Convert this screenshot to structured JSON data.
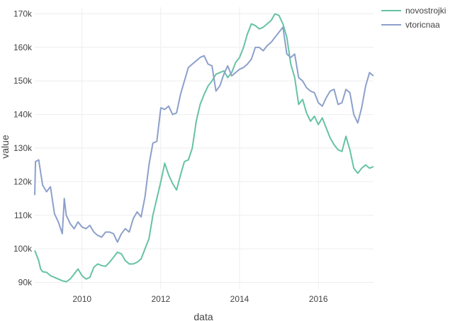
{
  "chart_data": {
    "type": "line",
    "xlabel": "data",
    "ylabel": "value",
    "xlim": [
      2008.8,
      2017.4
    ],
    "ylim": [
      88000,
      172000
    ],
    "x_ticks": [
      2010,
      2012,
      2014,
      2016
    ],
    "x_tick_labels": [
      "2010",
      "2012",
      "2014",
      "2016"
    ],
    "y_ticks": [
      90000,
      100000,
      110000,
      120000,
      130000,
      140000,
      150000,
      160000,
      170000
    ],
    "y_tick_labels": [
      "90k",
      "100k",
      "110k",
      "120k",
      "130k",
      "140k",
      "150k",
      "160k",
      "170k"
    ],
    "grid": true,
    "legend_position": "top-right",
    "series": [
      {
        "name": "novostrojki",
        "color": "#66c2a5",
        "points": [
          [
            2008.8,
            99500
          ],
          [
            2008.9,
            96500
          ],
          [
            2008.95,
            94000
          ],
          [
            2009.0,
            93200
          ],
          [
            2009.1,
            93000
          ],
          [
            2009.2,
            92000
          ],
          [
            2009.3,
            91500
          ],
          [
            2009.4,
            91000
          ],
          [
            2009.5,
            90500
          ],
          [
            2009.6,
            90200
          ],
          [
            2009.7,
            91000
          ],
          [
            2009.8,
            92500
          ],
          [
            2009.9,
            94000
          ],
          [
            2010.0,
            92000
          ],
          [
            2010.1,
            91000
          ],
          [
            2010.2,
            91500
          ],
          [
            2010.3,
            94500
          ],
          [
            2010.4,
            95500
          ],
          [
            2010.5,
            95000
          ],
          [
            2010.6,
            94800
          ],
          [
            2010.7,
            96000
          ],
          [
            2010.8,
            97500
          ],
          [
            2010.9,
            99000
          ],
          [
            2011.0,
            98500
          ],
          [
            2011.1,
            96500
          ],
          [
            2011.2,
            95500
          ],
          [
            2011.3,
            95500
          ],
          [
            2011.4,
            96000
          ],
          [
            2011.5,
            97000
          ],
          [
            2011.6,
            100000
          ],
          [
            2011.7,
            103000
          ],
          [
            2011.8,
            110000
          ],
          [
            2011.9,
            115000
          ],
          [
            2012.0,
            120000
          ],
          [
            2012.1,
            125500
          ],
          [
            2012.2,
            122000
          ],
          [
            2012.3,
            119500
          ],
          [
            2012.4,
            117500
          ],
          [
            2012.5,
            122000
          ],
          [
            2012.6,
            126000
          ],
          [
            2012.7,
            126500
          ],
          [
            2012.8,
            130000
          ],
          [
            2012.9,
            138000
          ],
          [
            2013.0,
            143000
          ],
          [
            2013.1,
            146000
          ],
          [
            2013.2,
            148500
          ],
          [
            2013.3,
            150000
          ],
          [
            2013.4,
            152000
          ],
          [
            2013.5,
            152500
          ],
          [
            2013.6,
            153000
          ],
          [
            2013.7,
            151000
          ],
          [
            2013.8,
            152500
          ],
          [
            2013.9,
            155500
          ],
          [
            2014.0,
            157000
          ],
          [
            2014.1,
            160000
          ],
          [
            2014.2,
            164000
          ],
          [
            2014.3,
            167000
          ],
          [
            2014.4,
            166500
          ],
          [
            2014.5,
            165500
          ],
          [
            2014.6,
            166000
          ],
          [
            2014.7,
            167000
          ],
          [
            2014.8,
            168000
          ],
          [
            2014.9,
            170000
          ],
          [
            2015.0,
            169500
          ],
          [
            2015.1,
            167000
          ],
          [
            2015.2,
            163000
          ],
          [
            2015.3,
            155000
          ],
          [
            2015.4,
            151000
          ],
          [
            2015.5,
            143000
          ],
          [
            2015.6,
            144500
          ],
          [
            2015.7,
            140500
          ],
          [
            2015.8,
            138000
          ],
          [
            2015.9,
            139500
          ],
          [
            2016.0,
            137000
          ],
          [
            2016.1,
            139000
          ],
          [
            2016.2,
            136000
          ],
          [
            2016.3,
            133000
          ],
          [
            2016.4,
            131000
          ],
          [
            2016.5,
            129500
          ],
          [
            2016.6,
            129000
          ],
          [
            2016.7,
            133500
          ],
          [
            2016.8,
            129500
          ],
          [
            2016.9,
            124000
          ],
          [
            2017.0,
            122500
          ],
          [
            2017.1,
            124000
          ],
          [
            2017.2,
            125000
          ],
          [
            2017.3,
            124000
          ],
          [
            2017.4,
            124500
          ]
        ]
      },
      {
        "name": "vtoricnaa",
        "color": "#8da0cb",
        "points": [
          [
            2008.8,
            116000
          ],
          [
            2008.82,
            126000
          ],
          [
            2008.9,
            126500
          ],
          [
            2009.0,
            119000
          ],
          [
            2009.1,
            117000
          ],
          [
            2009.2,
            118500
          ],
          [
            2009.3,
            110500
          ],
          [
            2009.4,
            108000
          ],
          [
            2009.5,
            104500
          ],
          [
            2009.55,
            115000
          ],
          [
            2009.6,
            110000
          ],
          [
            2009.7,
            107500
          ],
          [
            2009.8,
            106000
          ],
          [
            2009.9,
            108000
          ],
          [
            2010.0,
            106500
          ],
          [
            2010.1,
            106000
          ],
          [
            2010.2,
            107000
          ],
          [
            2010.3,
            105000
          ],
          [
            2010.4,
            104000
          ],
          [
            2010.5,
            103500
          ],
          [
            2010.6,
            105000
          ],
          [
            2010.7,
            105000
          ],
          [
            2010.8,
            104500
          ],
          [
            2010.9,
            102000
          ],
          [
            2011.0,
            104500
          ],
          [
            2011.1,
            106000
          ],
          [
            2011.2,
            105000
          ],
          [
            2011.3,
            109000
          ],
          [
            2011.4,
            111000
          ],
          [
            2011.5,
            109500
          ],
          [
            2011.6,
            115500
          ],
          [
            2011.7,
            125000
          ],
          [
            2011.8,
            131500
          ],
          [
            2011.9,
            132000
          ],
          [
            2012.0,
            142000
          ],
          [
            2012.1,
            141500
          ],
          [
            2012.2,
            142500
          ],
          [
            2012.3,
            140000
          ],
          [
            2012.4,
            140500
          ],
          [
            2012.5,
            146000
          ],
          [
            2012.6,
            150000
          ],
          [
            2012.7,
            154000
          ],
          [
            2012.8,
            155000
          ],
          [
            2012.9,
            156000
          ],
          [
            2013.0,
            157000
          ],
          [
            2013.1,
            157500
          ],
          [
            2013.2,
            155000
          ],
          [
            2013.3,
            154500
          ],
          [
            2013.4,
            147000
          ],
          [
            2013.5,
            148500
          ],
          [
            2013.6,
            152000
          ],
          [
            2013.7,
            154500
          ],
          [
            2013.8,
            151500
          ],
          [
            2013.9,
            152500
          ],
          [
            2014.0,
            153500
          ],
          [
            2014.1,
            154000
          ],
          [
            2014.2,
            155000
          ],
          [
            2014.3,
            156500
          ],
          [
            2014.4,
            160000
          ],
          [
            2014.5,
            160000
          ],
          [
            2014.6,
            159000
          ],
          [
            2014.7,
            160500
          ],
          [
            2014.8,
            161500
          ],
          [
            2014.9,
            163000
          ],
          [
            2015.0,
            164500
          ],
          [
            2015.1,
            166000
          ],
          [
            2015.2,
            158000
          ],
          [
            2015.3,
            157000
          ],
          [
            2015.4,
            158000
          ],
          [
            2015.5,
            151000
          ],
          [
            2015.6,
            150000
          ],
          [
            2015.7,
            148000
          ],
          [
            2015.8,
            147000
          ],
          [
            2015.9,
            146500
          ],
          [
            2016.0,
            143500
          ],
          [
            2016.1,
            142500
          ],
          [
            2016.2,
            145000
          ],
          [
            2016.3,
            147000
          ],
          [
            2016.4,
            147500
          ],
          [
            2016.5,
            143000
          ],
          [
            2016.6,
            143500
          ],
          [
            2016.7,
            147500
          ],
          [
            2016.8,
            146500
          ],
          [
            2016.9,
            140000
          ],
          [
            2017.0,
            137500
          ],
          [
            2017.1,
            142000
          ],
          [
            2017.2,
            148500
          ],
          [
            2017.3,
            152500
          ],
          [
            2017.4,
            151500
          ]
        ]
      }
    ]
  }
}
